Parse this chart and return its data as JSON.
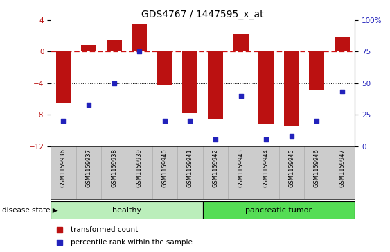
{
  "title": "GDS4767 / 1447595_x_at",
  "samples": [
    "GSM1159936",
    "GSM1159937",
    "GSM1159938",
    "GSM1159939",
    "GSM1159940",
    "GSM1159941",
    "GSM1159942",
    "GSM1159943",
    "GSM1159944",
    "GSM1159945",
    "GSM1159946",
    "GSM1159947"
  ],
  "red_bars": [
    -6.5,
    0.8,
    1.5,
    3.5,
    -4.2,
    -7.8,
    -8.5,
    2.2,
    -9.2,
    -9.5,
    -4.8,
    1.8
  ],
  "blue_percentiles": [
    20,
    33,
    50,
    75,
    20,
    20,
    5,
    40,
    5,
    8,
    20,
    43
  ],
  "ylim_left": [
    -12,
    4
  ],
  "ylim_right": [
    0,
    100
  ],
  "yticks_left": [
    -12,
    -8,
    -4,
    0,
    4
  ],
  "yticks_right": [
    0,
    25,
    50,
    75,
    100
  ],
  "healthy_count": 6,
  "tumor_count": 6,
  "healthy_color": "#bbeebb",
  "tumor_color": "#55dd55",
  "bar_color": "#bb1111",
  "dot_color": "#2222bb",
  "dashed_color": "#cc1111",
  "legend_red": "transformed count",
  "legend_blue": "percentile rank within the sample",
  "disease_state_label": "disease state",
  "healthy_label": "healthy",
  "tumor_label": "pancreatic tumor",
  "background_color": "#ffffff"
}
